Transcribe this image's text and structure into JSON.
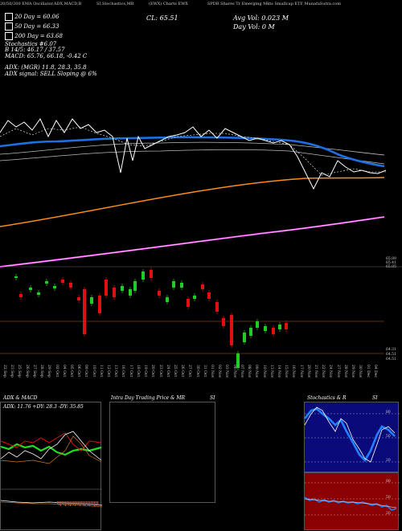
{
  "header": {
    "line1": "20/50/200 EMA Oscillator,ADX,MACD,B",
    "line1b": "SI,Stochastics,MR",
    "line1c": "(EWX) Charts EWX",
    "line1d": "SPDR Shares Tr Emerging Mkts Smallcap ETF MunafaSutra.com"
  },
  "legend": {
    "ema20": "20  Day = 60.06",
    "ema50": "50  Day = 66.33",
    "ema200": "200  Day = 63.68",
    "stochastic": "Stochastics #6.07",
    "bb": "B                     14/5: 46.17 / 37.57",
    "macd": "MACD: 65.76, 66.18, -0.42  C",
    "adx": "ADX:                         (MGR) 11.8, 28.3, 35.8",
    "adx_signal": "ADX  signal: SELL Sloping @ 6%",
    "close": "CL: 65.51",
    "avg_vol": "Avg Vol: 0.023  M",
    "day_vol": "Day Vol: 0   M"
  },
  "price_axis": {
    "upper": [
      "65.89",
      "65.41",
      "65.05"
    ],
    "lower": [
      "64.31",
      "64.51",
      "64.51"
    ]
  },
  "dates": [
    "22 Sep",
    "23 Sep",
    "25 Sep",
    "26 Sep",
    "27 Sep",
    "28 Sep",
    "29 Sep",
    "02 Oct",
    "04 Oct",
    "05 Oct",
    "06 Oct",
    "09 Oct",
    "10 Oct",
    "11 Oct",
    "12 Oct",
    "13 Oct",
    "16 Oct",
    "17 Oct",
    "18 Oct",
    "19 Oct",
    "20 Oct",
    "23 Oct",
    "24 Oct",
    "25 Oct",
    "26 Oct",
    "27 Oct",
    "30 Oct",
    "31 Oct",
    "01 Nov",
    "02 Nov",
    "03 Nov",
    "06 Nov",
    "07 Nov",
    "08 Nov",
    "09 Nov",
    "10 Nov",
    "13 Nov",
    "14 Nov",
    "15 Nov",
    "16 Nov",
    "17 Nov",
    "20 Nov",
    "21 Nov",
    "22 Nov",
    "24 Nov",
    "27 Nov",
    "28 Nov",
    "29 Nov",
    "30 Nov",
    "01 Dec",
    "04 Dec"
  ],
  "panels": {
    "adx": {
      "title": "ADX  & MACD",
      "readout": "ADX: 11.76  +DY: 28.3  -DY: 35.85"
    },
    "intraday": {
      "title": "Intra Day Trading Price  & MR",
      "suffix": "SI"
    },
    "stoch": {
      "title": "Stochastics & R",
      "suffix": "SI",
      "ticks": [
        "80",
        "50",
        "20"
      ],
      "rsi_ticks": [
        "80",
        "50",
        "20"
      ]
    }
  },
  "colors": {
    "ema_blue": "#1e6fe0",
    "ema_orange": "#ff8c1a",
    "ema_magenta": "#ff3cff",
    "up_candle": "#22cc22",
    "down_candle": "#e01010",
    "rsi_bg": "#8b0000",
    "stoch_bg": "#0a0a7a"
  }
}
